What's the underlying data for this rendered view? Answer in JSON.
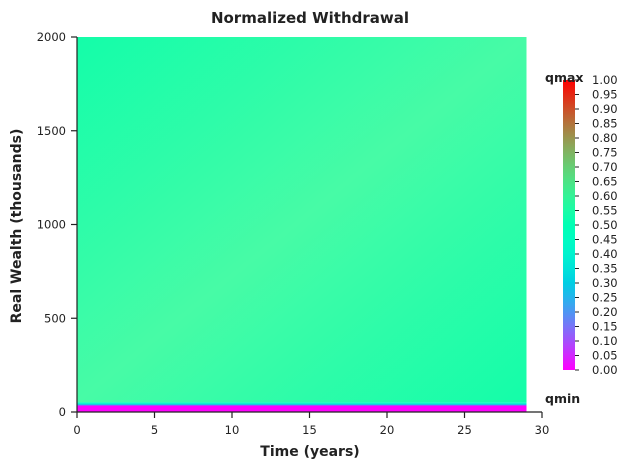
{
  "chart_data": {
    "type": "heatmap",
    "title": "Normalized Withdrawal",
    "xlabel": "Time (years)",
    "ylabel": "Real Wealth (thousands)",
    "xlim": [
      0,
      30
    ],
    "ylim": [
      0,
      2000
    ],
    "x_ticks": [
      0,
      5,
      10,
      15,
      20,
      25,
      30
    ],
    "y_ticks": [
      0,
      500,
      1000,
      1500,
      2000
    ],
    "x_data_extent": [
      0,
      29
    ],
    "colormap": "rainbow",
    "colorbar": {
      "range": [
        0,
        1
      ],
      "ticks": [
        0.0,
        0.05,
        0.1,
        0.15,
        0.2,
        0.25,
        0.3,
        0.35,
        0.4,
        0.45,
        0.5,
        0.55,
        0.6,
        0.65,
        0.7,
        0.75,
        0.8,
        0.85,
        0.9,
        0.95,
        1.0
      ],
      "tick_labels": [
        "0.00",
        "0.05",
        "0.10",
        "0.15",
        "0.20",
        "0.25",
        "0.30",
        "0.35",
        "0.40",
        "0.45",
        "0.50",
        "0.55",
        "0.60",
        "0.65",
        "0.70",
        "0.75",
        "0.80",
        "0.85",
        "0.90",
        "0.95",
        "1.00"
      ],
      "top_label": "qmax",
      "bottom_label": "qmin"
    },
    "bands": [
      {
        "y_from": 0,
        "y_to": 35,
        "value": 0.0
      },
      {
        "y_from": 35,
        "y_to": 40,
        "value": 0.2
      },
      {
        "y_from": 40,
        "y_to": 45,
        "value": 0.35
      },
      {
        "y_from": 45,
        "y_to": 52,
        "value": 0.45
      },
      {
        "y_from": 52,
        "y_to": 2000,
        "value": 0.54
      }
    ]
  }
}
